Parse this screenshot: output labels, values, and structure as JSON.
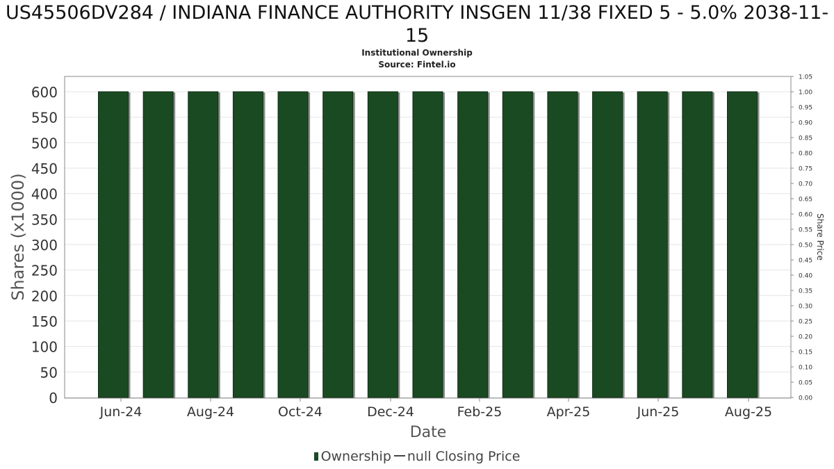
{
  "header": {
    "title": "US45506DV284 / INDIANA FINANCE AUTHORITY INSGEN 11/38 FIXED 5 - 5.0% 2038-11-15",
    "subtitle": "Institutional Ownership",
    "source": "Source: Fintel.io"
  },
  "legend": {
    "ownership_label": "Ownership",
    "price_label": "null Closing Price"
  },
  "colors": {
    "bar_fill": "#1a4a22",
    "bar_shadow": "#8a8a8a",
    "grid": "#e6e6e6",
    "axis": "#888888"
  },
  "chart_data": {
    "type": "bar",
    "title": "US45506DV284 / INDIANA FINANCE AUTHORITY INSGEN 11/38 FIXED 5 - 5.0% 2038-11-15",
    "subtitle": "Institutional Ownership",
    "xlabel": "Date",
    "ylabel": "Shares (x1000)",
    "y2label": "Share Price",
    "ylim": [
      0,
      600
    ],
    "y_ticks": [
      0,
      50,
      100,
      150,
      200,
      250,
      300,
      350,
      400,
      450,
      500,
      550,
      600
    ],
    "y2lim": [
      0,
      1.05
    ],
    "y2_ticks": [
      "0.00",
      "0.05",
      "0.10",
      "0.15",
      "0.20",
      "0.25",
      "0.30",
      "0.35",
      "0.40",
      "0.45",
      "0.50",
      "0.55",
      "0.60",
      "0.65",
      "0.70",
      "0.75",
      "0.80",
      "0.85",
      "0.90",
      "0.95",
      "1.00",
      "1.05"
    ],
    "x_tick_labels": [
      "Jun-24",
      "Aug-24",
      "Oct-24",
      "Dec-24",
      "Feb-25",
      "Apr-25",
      "Jun-25",
      "Aug-25"
    ],
    "series": [
      {
        "name": "Ownership",
        "values": [
          600,
          600,
          600,
          600,
          600,
          600,
          600,
          600,
          600,
          600,
          600,
          600,
          600,
          600,
          600
        ]
      }
    ],
    "grid": true,
    "legend_position": "bottom"
  }
}
